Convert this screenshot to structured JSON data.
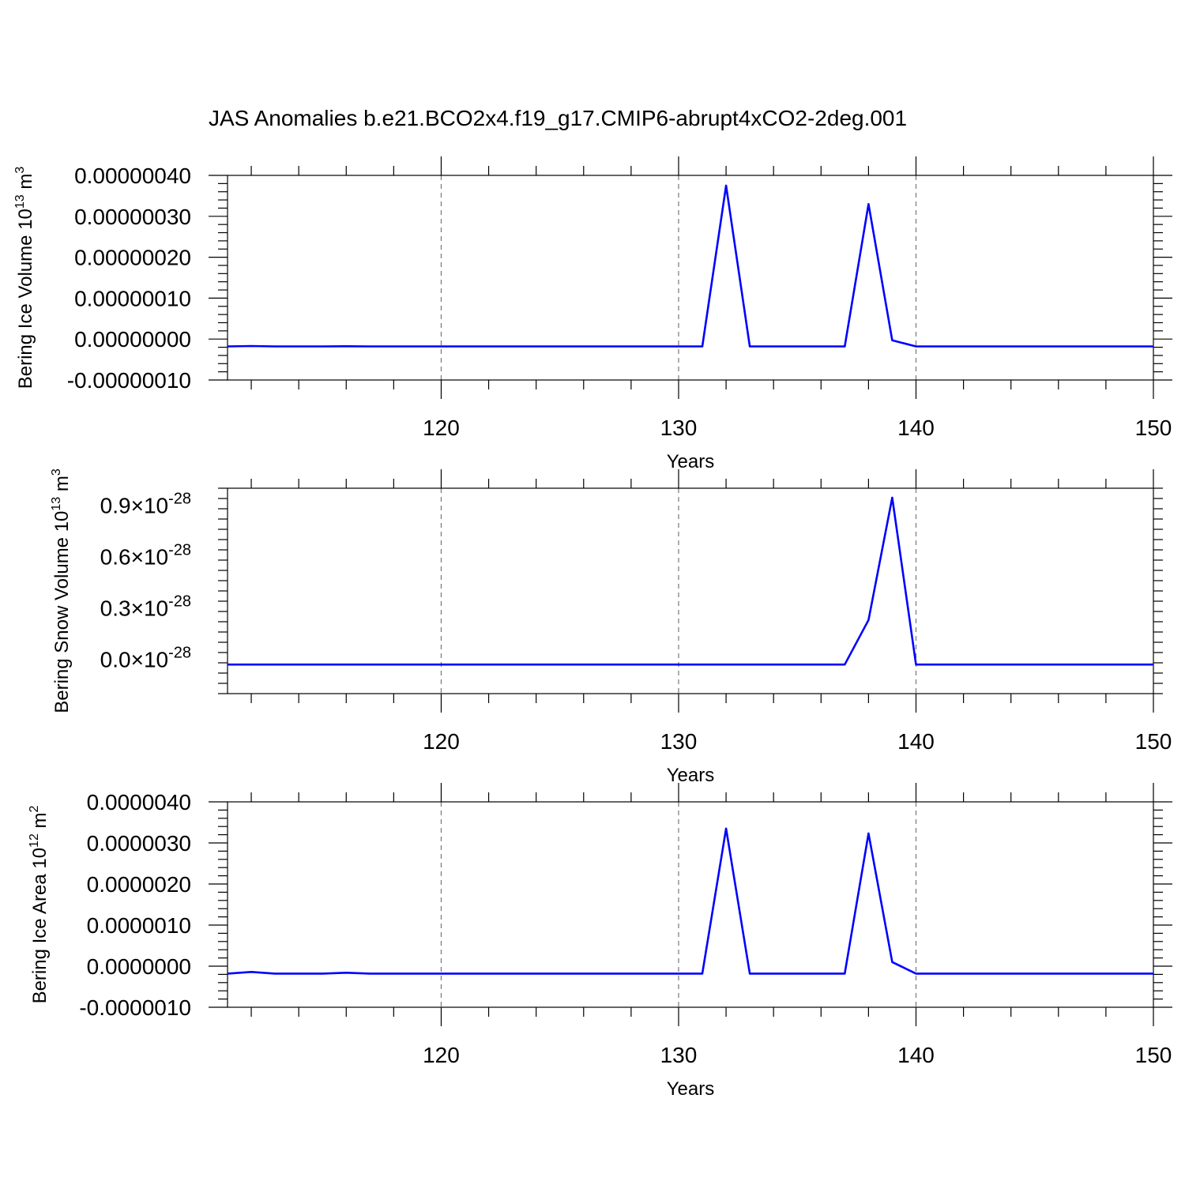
{
  "title": "JAS Anomalies b.e21.BCO2x4.f19_g17.CMIP6-abrupt4xCO2-2deg.001",
  "colors": {
    "line": "#0000ff",
    "grid": "#777777",
    "axis": "#000000"
  },
  "chart_data": [
    {
      "type": "line",
      "ylabel": {
        "main": "Bering Ice Volume 10",
        "sup": "13",
        "unit": " m",
        "unit_sup": "3"
      },
      "xlabel": "Years",
      "xlim": [
        111,
        150
      ],
      "ylim": [
        -1e-07,
        4e-07
      ],
      "xticks": [
        120,
        130,
        140,
        150
      ],
      "xtick_labels": [
        "120",
        "130",
        "140",
        "150"
      ],
      "yticks": [
        -1e-07,
        0,
        1e-07,
        2e-07,
        3e-07,
        4e-07
      ],
      "ytick_labels": [
        "-0.00000010",
        "0.00000000",
        "0.00000010",
        "0.00000020",
        "0.00000030",
        "0.00000040"
      ],
      "grid": "x-dashed",
      "x": [
        111,
        112,
        113,
        114,
        115,
        116,
        117,
        118,
        119,
        120,
        121,
        122,
        123,
        124,
        125,
        126,
        127,
        128,
        129,
        130,
        131,
        132,
        133,
        134,
        135,
        136,
        137,
        138,
        139,
        140,
        141,
        142,
        143,
        144,
        145,
        146,
        147,
        148,
        149,
        150
      ],
      "values": [
        -1.8e-08,
        -1.7e-08,
        -1.8e-08,
        -1.8e-08,
        -1.8e-08,
        -1.75e-08,
        -1.8e-08,
        -1.8e-08,
        -1.8e-08,
        -1.8e-08,
        -1.8e-08,
        -1.8e-08,
        -1.8e-08,
        -1.8e-08,
        -1.8e-08,
        -1.8e-08,
        -1.8e-08,
        -1.8e-08,
        -1.8e-08,
        -1.8e-08,
        -1.8e-08,
        3.75e-07,
        -1.8e-08,
        -1.8e-08,
        -1.8e-08,
        -1.8e-08,
        -1.8e-08,
        3.3e-07,
        -3e-09,
        -1.8e-08,
        -1.8e-08,
        -1.8e-08,
        -1.8e-08,
        -1.8e-08,
        -1.8e-08,
        -1.8e-08,
        -1.8e-08,
        -1.8e-08,
        -1.8e-08,
        -1.8e-08
      ]
    },
    {
      "type": "line",
      "ylabel": {
        "main": "Bering Snow Volume 10",
        "sup": "13",
        "unit": " m",
        "unit_sup": "3"
      },
      "xlabel": "Years",
      "xlim": [
        111,
        150
      ],
      "ylim": [
        -2e-29,
        1e-28
      ],
      "xticks": [
        120,
        130,
        140,
        150
      ],
      "xtick_labels": [
        "120",
        "130",
        "140",
        "150"
      ],
      "yticks": [
        0,
        3e-29,
        6e-29,
        9e-29
      ],
      "ytick_mantissa": [
        "0.0",
        "0.3",
        "0.6",
        "0.9"
      ],
      "ytick_times": "×10",
      "ytick_exp": "-28",
      "grid": "x-dashed",
      "x": [
        111,
        112,
        113,
        114,
        115,
        116,
        117,
        118,
        119,
        120,
        121,
        122,
        123,
        124,
        125,
        126,
        127,
        128,
        129,
        130,
        131,
        132,
        133,
        134,
        135,
        136,
        137,
        138,
        139,
        140,
        141,
        142,
        143,
        144,
        145,
        146,
        147,
        148,
        149,
        150
      ],
      "values": [
        -3e-30,
        -3e-30,
        -3e-30,
        -3e-30,
        -3e-30,
        -3e-30,
        -3e-30,
        -3e-30,
        -3e-30,
        -3e-30,
        -3e-30,
        -3e-30,
        -3e-30,
        -3e-30,
        -3e-30,
        -3e-30,
        -3e-30,
        -3e-30,
        -3e-30,
        -3e-30,
        -3e-30,
        -3e-30,
        -3e-30,
        -3e-30,
        -3e-30,
        -3e-30,
        -3e-30,
        2.3e-29,
        9.45e-29,
        -3e-30,
        -3e-30,
        -3e-30,
        -3e-30,
        -3e-30,
        -3e-30,
        -3e-30,
        -3e-30,
        -3e-30,
        -3e-30,
        -3e-30
      ]
    },
    {
      "type": "line",
      "ylabel": {
        "main": "Bering Ice Area 10",
        "sup": "12",
        "unit": " m",
        "unit_sup": "2"
      },
      "xlabel": "Years",
      "xlim": [
        111,
        150
      ],
      "ylim": [
        -1e-06,
        4e-06
      ],
      "xticks": [
        120,
        130,
        140,
        150
      ],
      "xtick_labels": [
        "120",
        "130",
        "140",
        "150"
      ],
      "yticks": [
        -1e-06,
        0,
        1e-06,
        2e-06,
        3e-06,
        4e-06
      ],
      "ytick_labels": [
        "-0.0000010",
        "0.0000000",
        "0.0000010",
        "0.0000020",
        "0.0000030",
        "0.0000040"
      ],
      "grid": "x-dashed",
      "x": [
        111,
        112,
        113,
        114,
        115,
        116,
        117,
        118,
        119,
        120,
        121,
        122,
        123,
        124,
        125,
        126,
        127,
        128,
        129,
        130,
        131,
        132,
        133,
        134,
        135,
        136,
        137,
        138,
        139,
        140,
        141,
        142,
        143,
        144,
        145,
        146,
        147,
        148,
        149,
        150
      ],
      "values": [
        -1.8e-07,
        -1.4e-07,
        -1.8e-07,
        -1.8e-07,
        -1.8e-07,
        -1.6e-07,
        -1.8e-07,
        -1.8e-07,
        -1.8e-07,
        -1.8e-07,
        -1.8e-07,
        -1.8e-07,
        -1.8e-07,
        -1.8e-07,
        -1.8e-07,
        -1.8e-07,
        -1.8e-07,
        -1.8e-07,
        -1.8e-07,
        -1.8e-07,
        -1.8e-07,
        3.35e-06,
        -1.8e-07,
        -1.8e-07,
        -1.8e-07,
        -1.8e-07,
        -1.8e-07,
        3.23e-06,
        1e-07,
        -1.8e-07,
        -1.8e-07,
        -1.8e-07,
        -1.8e-07,
        -1.8e-07,
        -1.8e-07,
        -1.8e-07,
        -1.8e-07,
        -1.8e-07,
        -1.8e-07,
        -1.8e-07
      ]
    }
  ]
}
